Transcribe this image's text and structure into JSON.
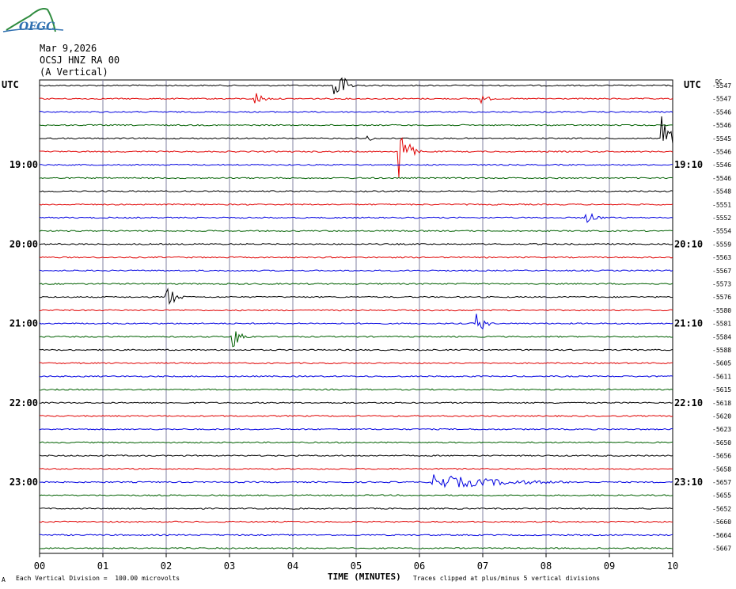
{
  "header": {
    "date": "Mar 9,2026",
    "station": "OCSJ HNZ RA 00",
    "component": "(A Vertical)",
    "logo_text": "OFGC"
  },
  "footer": {
    "scale_note": "Each Vertical Division =  100.00 microvolts",
    "clip_note": "Traces clipped at plus/minus 5 vertical divisions",
    "corner_mark": "A"
  },
  "chart_data": {
    "type": "line",
    "title": "",
    "xlabel": "TIME (MINUTES)",
    "ylabel": "",
    "left_axis_title": "UTC",
    "right_axis_title": "UTC",
    "right_corner_label": "DC",
    "xlim": [
      0,
      10
    ],
    "x_ticks": [
      "00",
      "01",
      "02",
      "03",
      "04",
      "05",
      "06",
      "07",
      "08",
      "09",
      "10"
    ],
    "left_hour_labels": [
      "19:00",
      "20:00",
      "21:00",
      "22:00",
      "23:00"
    ],
    "right_hour_labels": [
      "19:10",
      "20:10",
      "21:10",
      "22:10",
      "23:10"
    ],
    "hour_label_rows": [
      6,
      12,
      18,
      24,
      30
    ],
    "colors": [
      "#000000",
      "#e00000",
      "#0000e0",
      "#006000"
    ],
    "dc_offsets": [
      "-5547",
      "-5547",
      "-5546",
      "-5546",
      "-5545",
      "-5546",
      "-5546",
      "-5546",
      "-5548",
      "-5551",
      "-5552",
      "-5554",
      "-5559",
      "-5563",
      "-5567",
      "-5573",
      "-5576",
      "-5580",
      "-5581",
      "-5584",
      "-5588",
      "-5605",
      "-5611",
      "-5615",
      "-5618",
      "-5620",
      "-5623",
      "-5650",
      "-5656",
      "-5658",
      "-5657",
      "-5655",
      "-5652",
      "-5660",
      "-5664",
      "-5667"
    ],
    "events": [
      {
        "row": 0,
        "minute": 4.68,
        "amplitude": 24,
        "duration": 0.5
      },
      {
        "row": 1,
        "minute": 3.42,
        "amplitude": 9,
        "duration": 0.4
      },
      {
        "row": 1,
        "minute": 6.98,
        "amplitude": 6,
        "duration": 0.4
      },
      {
        "row": 4,
        "minute": 5.18,
        "amplitude": 6,
        "duration": 0.2
      },
      {
        "row": 4,
        "minute": 9.85,
        "amplitude": 34,
        "duration": 0.35
      },
      {
        "row": 5,
        "minute": 5.7,
        "amplitude": 40,
        "duration": 0.35
      },
      {
        "row": 10,
        "minute": 8.65,
        "amplitude": 8,
        "duration": 0.5
      },
      {
        "row": 16,
        "minute": 2.02,
        "amplitude": 15,
        "duration": 0.4
      },
      {
        "row": 18,
        "minute": 6.92,
        "amplitude": 18,
        "duration": 0.3
      },
      {
        "row": 19,
        "minute": 3.05,
        "amplitude": 17,
        "duration": 0.4
      },
      {
        "row": 30,
        "minute": 6.2,
        "amplitude": 10,
        "duration": 3.5
      }
    ]
  }
}
